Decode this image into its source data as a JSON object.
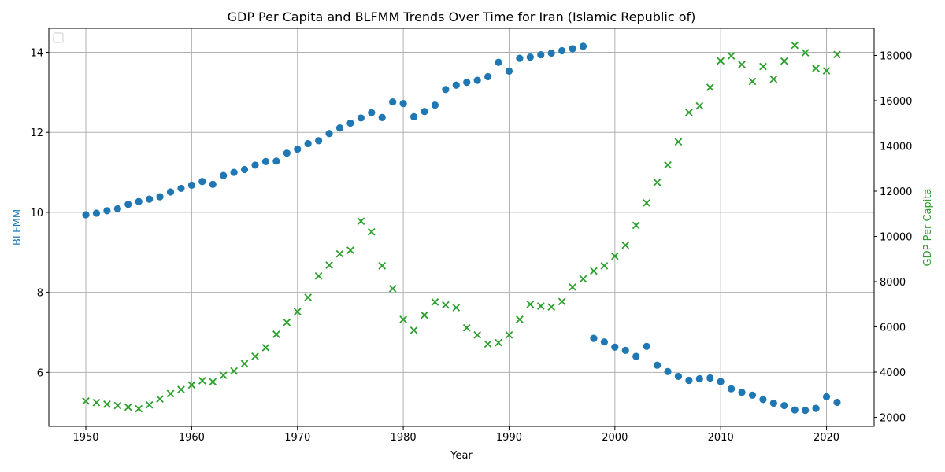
{
  "chart_data": {
    "type": "scatter",
    "title": "GDP Per Capita and BLFMM Trends Over Time for Iran (Islamic Republic of)",
    "xlabel": "Year",
    "ylabel_left": "BLFMM",
    "ylabel_right": "GDP Per Capita",
    "xlim": [
      1946.5,
      2024.5
    ],
    "ylim_left": [
      4.65,
      14.6
    ],
    "ylim_right": [
      1600,
      19200
    ],
    "x_ticks": [
      1950,
      1960,
      1970,
      1980,
      1990,
      2000,
      2010,
      2020
    ],
    "y_ticks_left": [
      6,
      8,
      10,
      12,
      14
    ],
    "y_ticks_right": [
      2000,
      4000,
      6000,
      8000,
      10000,
      12000,
      14000,
      16000,
      18000
    ],
    "grid": true,
    "legend": "top-left, empty",
    "colors": {
      "blfmm": "#1f77b4",
      "gdp": "#2ca02c"
    },
    "series": [
      {
        "name": "",
        "axis": "left",
        "marker": "circle",
        "x": [
          1950,
          1951,
          1952,
          1953,
          1954,
          1955,
          1956,
          1957,
          1958,
          1959,
          1960,
          1961,
          1962,
          1963,
          1964,
          1965,
          1966,
          1967,
          1968,
          1969,
          1970,
          1971,
          1972,
          1973,
          1974,
          1975,
          1976,
          1977,
          1978,
          1979,
          1980,
          1981,
          1982,
          1983,
          1984,
          1985,
          1986,
          1987,
          1988,
          1989,
          1990,
          1991,
          1992,
          1993,
          1994,
          1995,
          1996,
          1997,
          1998,
          1999,
          2000,
          2001,
          2002,
          2003,
          2004,
          2005,
          2006,
          2007,
          2008,
          2009,
          2010,
          2011,
          2012,
          2013,
          2014,
          2015,
          2016,
          2017,
          2018,
          2019,
          2020,
          2021
        ],
        "values": [
          9.94,
          9.98,
          10.04,
          10.09,
          10.2,
          10.27,
          10.33,
          10.39,
          10.51,
          10.6,
          10.68,
          10.77,
          10.7,
          10.92,
          11.0,
          11.07,
          11.18,
          11.27,
          11.28,
          11.48,
          11.58,
          11.72,
          11.79,
          11.97,
          12.11,
          12.23,
          12.36,
          12.49,
          12.37,
          12.76,
          12.72,
          12.39,
          12.52,
          12.68,
          13.07,
          13.18,
          13.25,
          13.3,
          13.39,
          13.75,
          13.53,
          13.85,
          13.88,
          13.94,
          13.98,
          14.04,
          14.09,
          14.15,
          6.85,
          6.76,
          6.63,
          6.55,
          6.4,
          6.65,
          6.18,
          6.02,
          5.9,
          5.8,
          5.84,
          5.86,
          5.77,
          5.59,
          5.5,
          5.43,
          5.32,
          5.23,
          5.17,
          5.06,
          5.05,
          5.1,
          5.39,
          5.25
        ]
      },
      {
        "name": "",
        "axis": "right",
        "marker": "x",
        "x": [
          1950,
          1951,
          1952,
          1953,
          1954,
          1955,
          1956,
          1957,
          1958,
          1959,
          1960,
          1961,
          1962,
          1963,
          1964,
          1965,
          1966,
          1967,
          1968,
          1969,
          1970,
          1971,
          1972,
          1973,
          1974,
          1975,
          1976,
          1977,
          1978,
          1979,
          1980,
          1981,
          1982,
          1983,
          1984,
          1985,
          1986,
          1987,
          1988,
          1989,
          1990,
          1991,
          1992,
          1993,
          1994,
          1995,
          1996,
          1997,
          1998,
          1999,
          2000,
          2001,
          2002,
          2003,
          2004,
          2005,
          2006,
          2007,
          2008,
          2009,
          2010,
          2011,
          2012,
          2013,
          2014,
          2015,
          2016,
          2017,
          2018,
          2019,
          2020,
          2021
        ],
        "values": [
          2720,
          2650,
          2580,
          2520,
          2450,
          2380,
          2550,
          2810,
          3050,
          3230,
          3430,
          3620,
          3570,
          3860,
          4050,
          4370,
          4700,
          5080,
          5670,
          6200,
          6670,
          7300,
          8250,
          8730,
          9230,
          9390,
          10670,
          10200,
          8700,
          7690,
          6330,
          5850,
          6520,
          7100,
          6970,
          6850,
          5960,
          5640,
          5240,
          5300,
          5640,
          6330,
          7000,
          6920,
          6880,
          7120,
          7760,
          8120,
          8470,
          8700,
          9130,
          9610,
          10490,
          11480,
          12390,
          13160,
          14180,
          15480,
          15770,
          16590,
          17760,
          17980,
          17600,
          16850,
          17510,
          16950,
          17750,
          18450,
          18120,
          17430,
          17320,
          18040
        ]
      }
    ]
  }
}
